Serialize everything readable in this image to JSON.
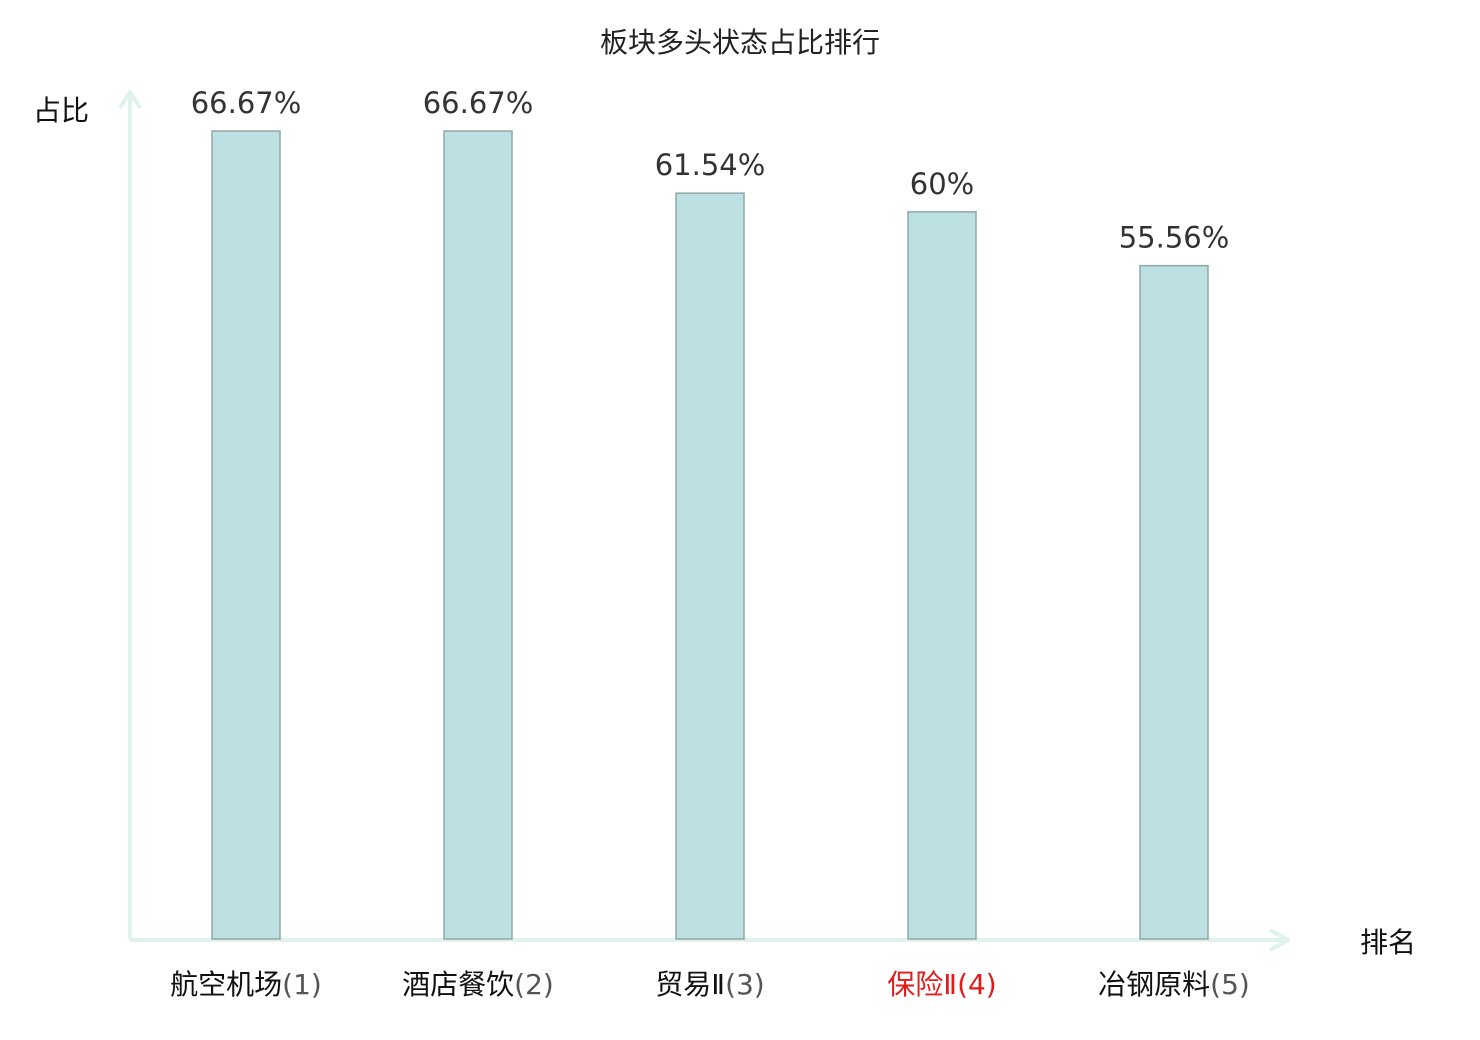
{
  "chart_data": {
    "type": "bar",
    "title": "板块多头状态占比排行",
    "ylabel": "占比",
    "xlabel": "排名",
    "categories": [
      {
        "name": "航空机场",
        "rank": "(1)",
        "highlight": false
      },
      {
        "name": "酒店餐饮",
        "rank": "(2)",
        "highlight": false
      },
      {
        "name": "贸易Ⅱ",
        "rank": "(3)",
        "highlight": false
      },
      {
        "name": "保险Ⅱ",
        "rank": "(4)",
        "highlight": true
      },
      {
        "name": "冶钢原料",
        "rank": "(5)",
        "highlight": false
      }
    ],
    "values": [
      66.67,
      66.67,
      61.54,
      60,
      55.56
    ],
    "value_labels": [
      "66.67%",
      "66.67%",
      "61.54%",
      "60%",
      "55.56%"
    ],
    "ylim": [
      0,
      70
    ],
    "grid": false,
    "legend": "none",
    "colors": {
      "bar_fill": "#bde1e3",
      "bar_stroke": "#8fa8a8",
      "axis": "#dff2ee",
      "label_default": "#111111",
      "label_rank": "#555555",
      "label_highlight": "#e31b1b"
    }
  }
}
